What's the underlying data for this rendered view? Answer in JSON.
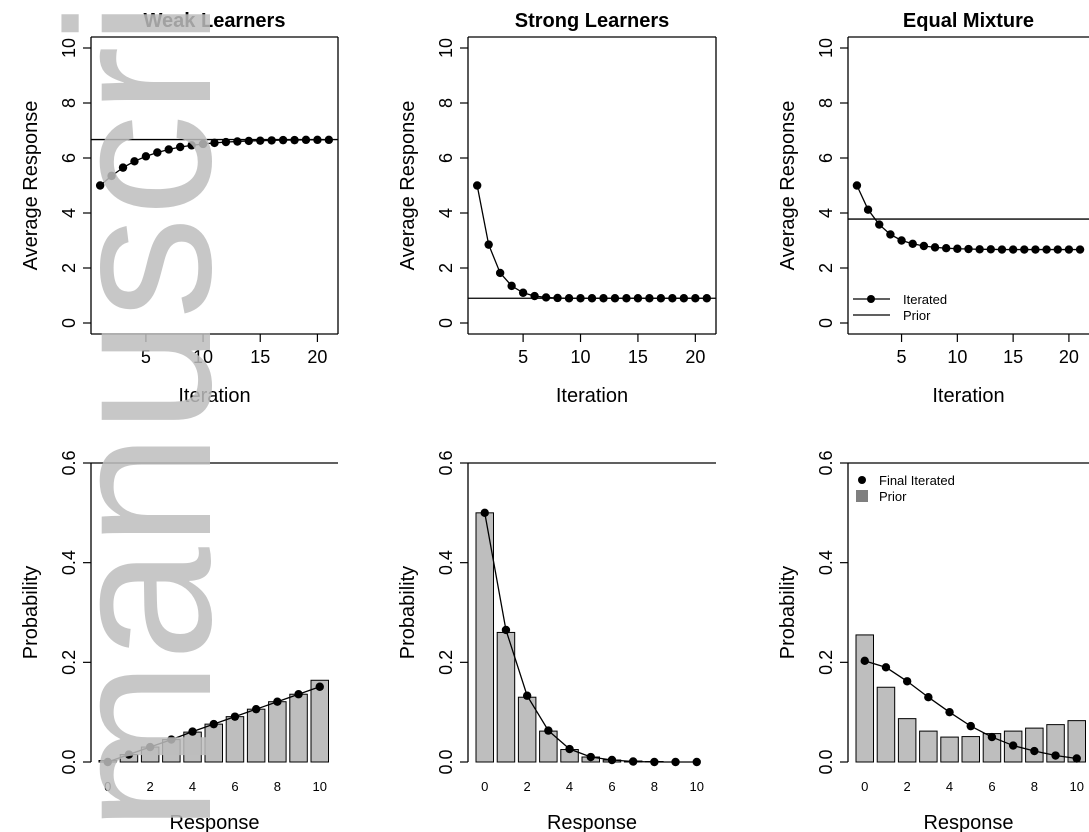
{
  "watermark": {
    "text": "manuscript",
    "color": "#bdbdbd"
  },
  "colors": {
    "bar": "#bebebe",
    "prior_legend": "#7f7f7f",
    "line": "#000000"
  },
  "chart_data": [
    {
      "type": "line",
      "title": "Weak Learners",
      "xlabel": "Iteration",
      "ylabel": "Average Response",
      "xlim": [
        0.2,
        21.8
      ],
      "ylim": [
        -0.4,
        10.4
      ],
      "xticks": [
        5,
        10,
        15,
        20
      ],
      "yticks": [
        0,
        2,
        4,
        6,
        8,
        10
      ],
      "x": [
        1,
        2,
        3,
        4,
        5,
        6,
        7,
        8,
        9,
        10,
        11,
        12,
        13,
        14,
        15,
        16,
        17,
        18,
        19,
        20,
        21
      ],
      "series": [
        {
          "values": [
            5.0,
            5.35,
            5.65,
            5.88,
            6.06,
            6.2,
            6.31,
            6.4,
            6.46,
            6.51,
            6.55,
            6.58,
            6.6,
            6.62,
            6.63,
            6.64,
            6.65,
            6.65,
            6.66,
            6.66,
            6.66
          ]
        }
      ],
      "hline": 6.67
    },
    {
      "type": "line",
      "title": "Strong Learners",
      "xlabel": "Iteration",
      "ylabel": "Average Response",
      "xlim": [
        0.2,
        21.8
      ],
      "ylim": [
        -0.4,
        10.4
      ],
      "xticks": [
        5,
        10,
        15,
        20
      ],
      "yticks": [
        0,
        2,
        4,
        6,
        8,
        10
      ],
      "x": [
        1,
        2,
        3,
        4,
        5,
        6,
        7,
        8,
        9,
        10,
        11,
        12,
        13,
        14,
        15,
        16,
        17,
        18,
        19,
        20,
        21
      ],
      "series": [
        {
          "values": [
            5.0,
            2.85,
            1.82,
            1.35,
            1.1,
            0.98,
            0.93,
            0.91,
            0.9,
            0.9,
            0.9,
            0.9,
            0.9,
            0.9,
            0.9,
            0.9,
            0.9,
            0.9,
            0.9,
            0.9,
            0.9
          ]
        }
      ],
      "hline": 0.9
    },
    {
      "type": "line",
      "title": "Equal Mixture",
      "xlabel": "Iteration",
      "ylabel": "Average Response",
      "xlim": [
        0.2,
        21.8
      ],
      "ylim": [
        -0.4,
        10.4
      ],
      "xticks": [
        5,
        10,
        15,
        20
      ],
      "yticks": [
        0,
        2,
        4,
        6,
        8,
        10
      ],
      "x": [
        1,
        2,
        3,
        4,
        5,
        6,
        7,
        8,
        9,
        10,
        11,
        12,
        13,
        14,
        15,
        16,
        17,
        18,
        19,
        20,
        21
      ],
      "series": [
        {
          "name": "Iterated",
          "values": [
            5.0,
            4.12,
            3.58,
            3.22,
            3.0,
            2.88,
            2.8,
            2.75,
            2.72,
            2.7,
            2.69,
            2.68,
            2.68,
            2.67,
            2.67,
            2.67,
            2.67,
            2.67,
            2.67,
            2.67,
            2.67
          ]
        }
      ],
      "hline": 3.78,
      "hline_name": "Prior",
      "legend": "bottom-left"
    },
    {
      "type": "bar",
      "title": "",
      "xlabel": "Response",
      "ylabel": "Probability",
      "ylim": [
        0,
        0.6
      ],
      "yticks": [
        "0.0",
        "0.2",
        "0.4",
        "0.6"
      ],
      "xticks": [
        0,
        2,
        4,
        6,
        8,
        10
      ],
      "categories": [
        0,
        1,
        2,
        3,
        4,
        5,
        6,
        7,
        8,
        9,
        10
      ],
      "bars": [
        0.003,
        0.015,
        0.03,
        0.045,
        0.06,
        0.076,
        0.091,
        0.106,
        0.121,
        0.136,
        0.164
      ],
      "points": [
        0.0,
        0.015,
        0.03,
        0.045,
        0.061,
        0.076,
        0.091,
        0.106,
        0.121,
        0.136,
        0.151
      ]
    },
    {
      "type": "bar",
      "title": "",
      "xlabel": "Response",
      "ylabel": "Probability",
      "ylim": [
        0,
        0.6
      ],
      "yticks": [
        "0.0",
        "0.2",
        "0.4",
        "0.6"
      ],
      "xticks": [
        0,
        2,
        4,
        6,
        8,
        10
      ],
      "categories": [
        0,
        1,
        2,
        3,
        4,
        5,
        6,
        7,
        8,
        9,
        10
      ],
      "bars": [
        0.5,
        0.26,
        0.13,
        0.062,
        0.025,
        0.01,
        0.004,
        0.002,
        0.001,
        0.0,
        0.0
      ],
      "points": [
        0.5,
        0.265,
        0.133,
        0.063,
        0.026,
        0.01,
        0.004,
        0.001,
        0.0,
        0.0,
        0.0
      ]
    },
    {
      "type": "bar",
      "title": "",
      "xlabel": "Response",
      "ylabel": "Probability",
      "ylim": [
        0,
        0.6
      ],
      "yticks": [
        "0.0",
        "0.2",
        "0.4",
        "0.6"
      ],
      "xticks": [
        0,
        2,
        4,
        6,
        8,
        10
      ],
      "categories": [
        0,
        1,
        2,
        3,
        4,
        5,
        6,
        7,
        8,
        9,
        10
      ],
      "bars": [
        0.255,
        0.15,
        0.087,
        0.062,
        0.05,
        0.051,
        0.057,
        0.062,
        0.068,
        0.075,
        0.083
      ],
      "points": [
        0.203,
        0.19,
        0.162,
        0.13,
        0.1,
        0.072,
        0.05,
        0.033,
        0.022,
        0.013,
        0.007
      ],
      "point_name": "Final Iterated",
      "bar_name": "Prior",
      "legend": "top-left"
    }
  ]
}
